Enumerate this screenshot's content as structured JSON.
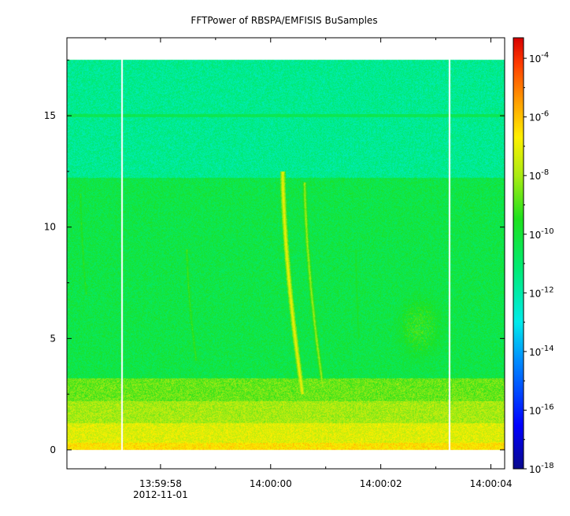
{
  "chart_data": {
    "type": "heatmap",
    "title": "FFTPower of RBSPA/EMFISIS  BuSamples",
    "xlabel": "",
    "ylabel": "",
    "x_ticks": [
      {
        "time_sec": 58,
        "label": "13:59:58",
        "sublabel": "2012-11-01"
      },
      {
        "time_sec": 60,
        "label": "14:00:00",
        "sublabel": ""
      },
      {
        "time_sec": 62,
        "label": "14:00:02",
        "sublabel": ""
      },
      {
        "time_sec": 64,
        "label": "14:00:04",
        "sublabel": ""
      }
    ],
    "xlim_sec": [
      56.3,
      64.25
    ],
    "y_ticks": [
      0,
      5,
      10,
      15
    ],
    "ylim": [
      -0.85,
      18.5
    ],
    "data_ymax": 17.5,
    "colorbar": {
      "scale": "log",
      "min_exp": -18,
      "max_exp": -3.3,
      "tick_exps": [
        -18,
        -16,
        -14,
        -12,
        -10,
        -8,
        -6,
        -4
      ],
      "tick_labels": [
        {
          "base": "10",
          "exp": "-18"
        },
        {
          "base": "10",
          "exp": "-16"
        },
        {
          "base": "10",
          "exp": "-14"
        },
        {
          "base": "10",
          "exp": "-12"
        },
        {
          "base": "10",
          "exp": "-10"
        },
        {
          "base": "10",
          "exp": "-8"
        },
        {
          "base": "10",
          "exp": "-6"
        },
        {
          "base": "10",
          "exp": "-4"
        }
      ]
    },
    "data_gaps_sec": [
      57.3,
      63.25
    ],
    "background_levels": [
      {
        "f_min": 0.0,
        "f_max": 0.3,
        "log10_power": -6.5
      },
      {
        "f_min": 0.3,
        "f_max": 1.2,
        "log10_power": -7.2
      },
      {
        "f_min": 1.2,
        "f_max": 2.2,
        "log10_power": -8.0
      },
      {
        "f_min": 2.2,
        "f_max": 3.2,
        "log10_power": -8.7
      },
      {
        "f_min": 3.2,
        "f_max": 12.2,
        "log10_power": -10.3
      },
      {
        "f_min": 12.2,
        "f_max": 17.5,
        "log10_power": -11.6
      }
    ],
    "emission_lines": [
      {
        "freq": 15.0,
        "log10_power": -10.5
      }
    ],
    "bursts": [
      {
        "t_start": 60.22,
        "f_start": 12.5,
        "t_end": 60.58,
        "f_end": 2.5,
        "log10_power": -6.8
      },
      {
        "t_start": 60.62,
        "f_start": 12.0,
        "t_end": 60.95,
        "f_end": 2.8,
        "log10_power": -8.0
      },
      {
        "t_start": 58.48,
        "f_start": 9.0,
        "t_end": 58.65,
        "f_end": 4.0,
        "log10_power": -9.0
      },
      {
        "t_start": 56.55,
        "f_start": 11.5,
        "t_end": 56.65,
        "f_end": 7.0,
        "log10_power": -9.3
      },
      {
        "t_start": 61.55,
        "f_start": 9.0,
        "t_end": 61.6,
        "f_end": 5.0,
        "log10_power": -9.5
      }
    ],
    "patches": [
      {
        "t": 62.7,
        "f": 5.5,
        "rt": 0.5,
        "rf": 1.7,
        "log10_power": -9.0
      }
    ]
  }
}
